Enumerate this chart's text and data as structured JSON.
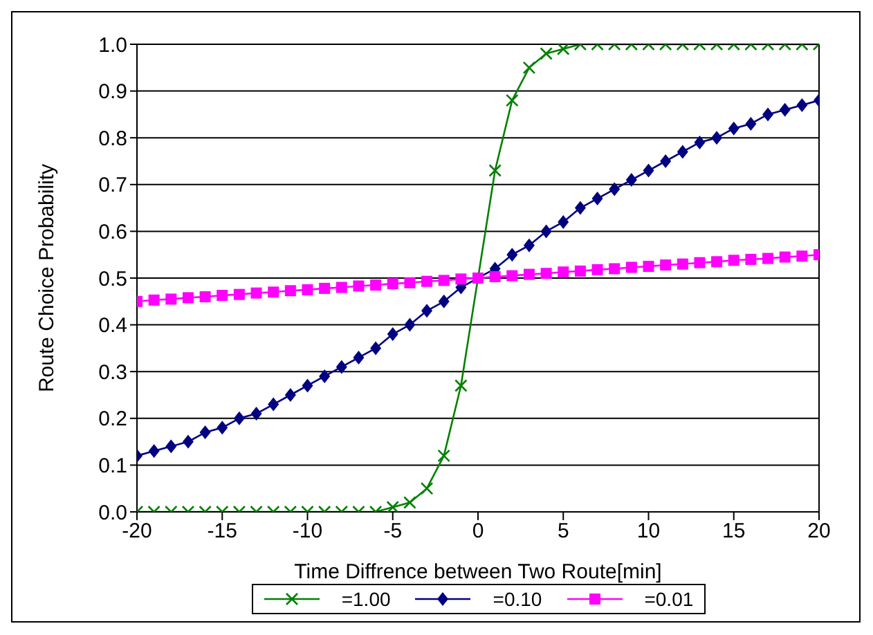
{
  "chart_data": {
    "type": "line",
    "xlabel": "Time Diffrence between Two Route[min]",
    "ylabel": "Route Choice Probability",
    "x": [
      -20,
      -19,
      -18,
      -17,
      -16,
      -15,
      -14,
      -13,
      -12,
      -11,
      -10,
      -9,
      -8,
      -7,
      -6,
      -5,
      -4,
      -3,
      -2,
      -1,
      0,
      1,
      2,
      3,
      4,
      5,
      6,
      7,
      8,
      9,
      10,
      11,
      12,
      13,
      14,
      15,
      16,
      17,
      18,
      19,
      20
    ],
    "series": [
      {
        "name": "=1.00",
        "color": "#008000",
        "marker": "cross",
        "values": [
          0,
          0,
          0,
          0,
          0,
          0,
          0,
          0,
          0,
          0,
          0,
          0,
          0,
          0,
          0,
          0.01,
          0.02,
          0.05,
          0.12,
          0.27,
          null,
          0.73,
          0.88,
          0.95,
          0.98,
          0.99,
          1,
          1,
          1,
          1,
          1,
          1,
          1,
          1,
          1,
          1,
          1,
          1,
          1,
          1,
          1
        ]
      },
      {
        "name": "=0.10",
        "color": "#000080",
        "marker": "diamond",
        "values": [
          0.12,
          0.13,
          0.14,
          0.15,
          0.17,
          0.18,
          0.2,
          0.21,
          0.23,
          0.25,
          0.27,
          0.29,
          0.31,
          0.33,
          0.35,
          0.38,
          0.4,
          0.43,
          0.45,
          0.48,
          null,
          0.52,
          0.55,
          0.57,
          0.6,
          0.62,
          0.65,
          0.67,
          0.69,
          0.71,
          0.73,
          0.75,
          0.77,
          0.79,
          0.8,
          0.82,
          0.83,
          0.85,
          0.86,
          0.87,
          0.88
        ]
      },
      {
        "name": "=0.01",
        "color": "#ff00ff",
        "marker": "square",
        "values": [
          0.45,
          0.453,
          0.455,
          0.458,
          0.46,
          0.463,
          0.465,
          0.468,
          0.47,
          0.473,
          0.475,
          0.478,
          0.48,
          0.483,
          0.485,
          0.488,
          0.49,
          0.493,
          0.495,
          0.498,
          0.5,
          0.503,
          0.505,
          0.508,
          0.51,
          0.513,
          0.515,
          0.518,
          0.52,
          0.523,
          0.525,
          0.528,
          0.53,
          0.533,
          0.535,
          0.538,
          0.54,
          0.542,
          0.545,
          0.547,
          0.55
        ]
      }
    ],
    "xlim": [
      -20,
      20
    ],
    "xticks": [
      -20,
      -15,
      -10,
      -5,
      0,
      5,
      10,
      15,
      20
    ],
    "ylim": [
      0,
      1
    ],
    "yticks": [
      {
        "value": 0,
        "label": "0.0"
      },
      {
        "value": 0.1,
        "label": "0.1"
      },
      {
        "value": 0.2,
        "label": "0.2"
      },
      {
        "value": 0.3,
        "label": "0.3"
      },
      {
        "value": 0.4,
        "label": "0.4"
      },
      {
        "value": 0.5,
        "label": "0.5"
      },
      {
        "value": 0.6,
        "label": "0.6"
      },
      {
        "value": 0.7,
        "label": "0.7"
      },
      {
        "value": 0.8,
        "label": "0.8"
      },
      {
        "value": 0.9,
        "label": "0.9"
      },
      {
        "value": 1,
        "label": "1.0"
      }
    ],
    "grid": "y",
    "legend": "bottom",
    "line_style": "solid"
  }
}
